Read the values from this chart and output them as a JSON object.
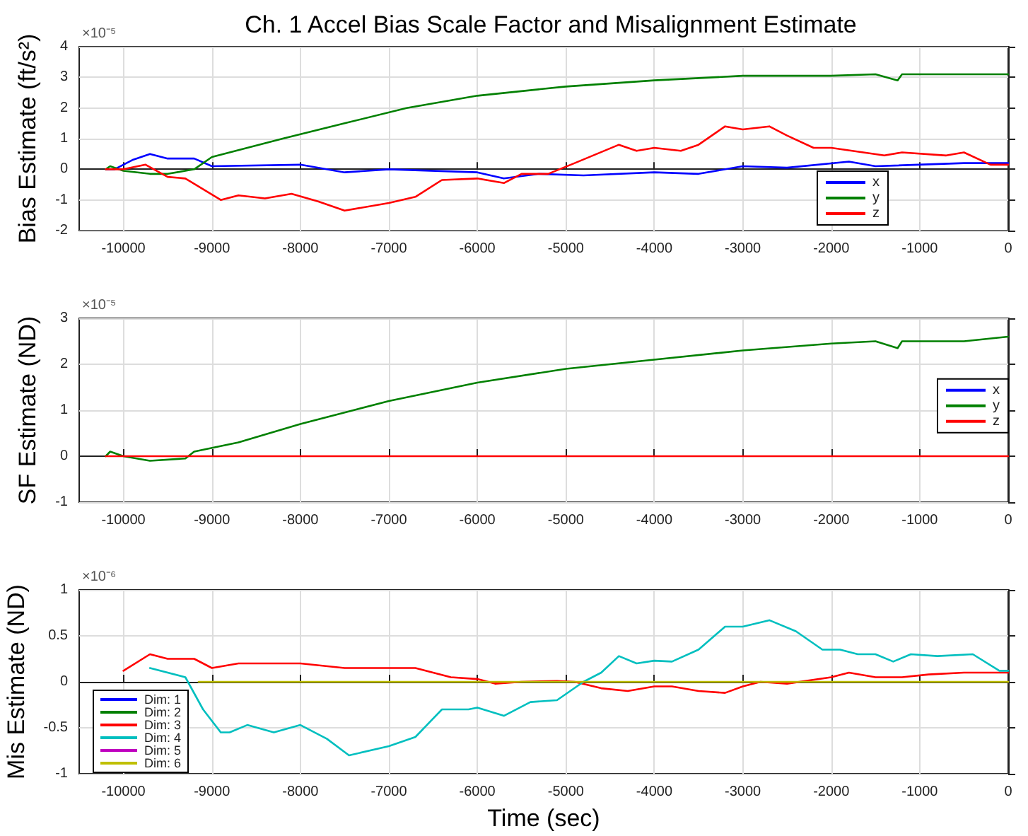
{
  "chart_data": [
    {
      "type": "line",
      "title": "Ch. 1 Accel Bias Scale Factor and Misalignment Estimate",
      "ylabel": "Bias Estimate (ft/s²)",
      "annotations": [
        "×10⁻⁵"
      ],
      "xlim": [
        -10500,
        0
      ],
      "xticks": [
        -10000,
        -9000,
        -8000,
        -7000,
        -6000,
        -5000,
        -4000,
        -3000,
        -2000,
        -1000,
        0
      ],
      "ylim": [
        -2,
        4
      ],
      "yticks": [
        -2,
        -1,
        0,
        1,
        2,
        3,
        4
      ],
      "grid": true,
      "legend": "bottom right",
      "line_style": "solid",
      "marker": "none",
      "series": [
        {
          "name": "x",
          "color": "#0000ff",
          "x": [
            -10200,
            -10100,
            -9900,
            -9700,
            -9500,
            -9200,
            -9000,
            -8000,
            -7500,
            -7000,
            -6000,
            -5700,
            -5300,
            -4800,
            -4000,
            -3500,
            -3000,
            -2500,
            -1800,
            -1500,
            -500,
            0
          ],
          "values": [
            0,
            0,
            0.3,
            0.5,
            0.35,
            0.35,
            0.1,
            0.15,
            -0.1,
            0,
            -0.1,
            -0.3,
            -0.15,
            -0.2,
            -0.1,
            -0.15,
            0.1,
            0.05,
            0.25,
            0.1,
            0.2,
            0.2
          ]
        },
        {
          "name": "y",
          "color": "#008000",
          "x": [
            -10200,
            -10150,
            -10000,
            -9700,
            -9500,
            -9200,
            -9000,
            -8200,
            -7500,
            -6800,
            -6000,
            -5000,
            -4000,
            -3000,
            -2000,
            -1500,
            -1250,
            -1200,
            0
          ],
          "values": [
            0,
            0.1,
            -0.05,
            -0.15,
            -0.15,
            0,
            0.4,
            1.0,
            1.5,
            2.0,
            2.4,
            2.7,
            2.9,
            3.05,
            3.05,
            3.1,
            2.9,
            3.1,
            3.1
          ]
        },
        {
          "name": "z",
          "color": "#ff0000",
          "x": [
            -10200,
            -10000,
            -9750,
            -9500,
            -9300,
            -8900,
            -8700,
            -8400,
            -8100,
            -7800,
            -7500,
            -7000,
            -6700,
            -6400,
            -6000,
            -5700,
            -5500,
            -5200,
            -4900,
            -4400,
            -4200,
            -4000,
            -3700,
            -3500,
            -3200,
            -3000,
            -2700,
            -2500,
            -2200,
            -2000,
            -1400,
            -1200,
            -700,
            -500,
            -200,
            0
          ],
          "values": [
            0,
            0,
            0.15,
            -0.25,
            -0.3,
            -1.0,
            -0.85,
            -0.95,
            -0.8,
            -1.05,
            -1.35,
            -1.1,
            -0.9,
            -0.35,
            -0.3,
            -0.45,
            -0.15,
            -0.15,
            0.2,
            0.8,
            0.6,
            0.7,
            0.6,
            0.8,
            1.4,
            1.3,
            1.4,
            1.1,
            0.7,
            0.7,
            0.45,
            0.55,
            0.45,
            0.55,
            0.15,
            0.15
          ]
        }
      ]
    },
    {
      "type": "line",
      "ylabel": "SF Estimate (ND)",
      "annotations": [
        "×10⁻⁵"
      ],
      "xlim": [
        -10500,
        0
      ],
      "xticks": [
        -10000,
        -9000,
        -8000,
        -7000,
        -6000,
        -5000,
        -4000,
        -3000,
        -2000,
        -1000,
        0
      ],
      "ylim": [
        -1,
        3
      ],
      "yticks": [
        -1,
        0,
        1,
        2,
        3
      ],
      "grid": true,
      "legend": "right",
      "line_style": "solid",
      "marker": "none",
      "series": [
        {
          "name": "x",
          "color": "#0000ff"
        },
        {
          "name": "y",
          "color": "#008000",
          "x": [
            -10200,
            -10150,
            -10000,
            -9700,
            -9300,
            -9200,
            -8700,
            -8000,
            -7400,
            -7000,
            -6000,
            -5000,
            -4000,
            -3000,
            -2000,
            -1500,
            -1250,
            -1200,
            -500,
            0
          ],
          "values": [
            0,
            0.1,
            0,
            -0.1,
            -0.05,
            0.1,
            0.3,
            0.7,
            1.0,
            1.2,
            1.6,
            1.9,
            2.1,
            2.3,
            2.45,
            2.5,
            2.35,
            2.5,
            2.5,
            2.6
          ]
        },
        {
          "name": "z",
          "color": "#ff0000",
          "x": [
            -10200,
            0
          ],
          "values": [
            0,
            0
          ]
        }
      ]
    },
    {
      "type": "line",
      "xlabel": "Time (sec)",
      "ylabel": "Mis Estimate (ND)",
      "annotations": [
        "×10⁻⁶"
      ],
      "xlim": [
        -10500,
        0
      ],
      "xticks": [
        -10000,
        -9000,
        -8000,
        -7000,
        -6000,
        -5000,
        -4000,
        -3000,
        -2000,
        -1000,
        0
      ],
      "ylim": [
        -1,
        1
      ],
      "yticks": [
        -1,
        -0.5,
        0,
        0.5,
        1
      ],
      "grid": true,
      "legend": "bottom left",
      "line_style": "solid",
      "marker": "none",
      "series": [
        {
          "name": "Dim: 1",
          "color": "#0000ff"
        },
        {
          "name": "Dim: 2",
          "color": "#008000"
        },
        {
          "name": "Dim: 3",
          "color": "#ff0000",
          "x": [
            -10000,
            -9700,
            -9500,
            -9200,
            -9000,
            -8700,
            -8400,
            -8000,
            -7500,
            -7000,
            -6700,
            -6300,
            -6000,
            -5800,
            -5500,
            -5100,
            -4900,
            -4600,
            -4300,
            -4000,
            -3800,
            -3500,
            -3200,
            -3000,
            -2800,
            -2500,
            -2000,
            -1800,
            -1500,
            -1200,
            -900,
            -500,
            0
          ],
          "values": [
            0.12,
            0.3,
            0.25,
            0.25,
            0.15,
            0.2,
            0.2,
            0.2,
            0.15,
            0.15,
            0.15,
            0.05,
            0.03,
            -0.02,
            0,
            0.01,
            0,
            -0.07,
            -0.1,
            -0.05,
            -0.05,
            -0.1,
            -0.12,
            -0.05,
            0,
            -0.02,
            0.05,
            0.1,
            0.05,
            0.05,
            0.08,
            0.1,
            0.1
          ]
        },
        {
          "name": "Dim: 4",
          "color": "#00bfbf",
          "x": [
            -9700,
            -9300,
            -9100,
            -8900,
            -8800,
            -8600,
            -8300,
            -8000,
            -7700,
            -7450,
            -7000,
            -6700,
            -6400,
            -6100,
            -6000,
            -5700,
            -5400,
            -5100,
            -4800,
            -4600,
            -4400,
            -4200,
            -4000,
            -3800,
            -3500,
            -3200,
            -3000,
            -2700,
            -2400,
            -2100,
            -1900,
            -1700,
            -1500,
            -1300,
            -1100,
            -800,
            -400,
            -100,
            0
          ],
          "values": [
            0.15,
            0.05,
            -0.3,
            -0.55,
            -0.55,
            -0.47,
            -0.55,
            -0.47,
            -0.62,
            -0.8,
            -0.7,
            -0.6,
            -0.3,
            -0.3,
            -0.28,
            -0.37,
            -0.22,
            -0.2,
            0,
            0.1,
            0.28,
            0.2,
            0.23,
            0.22,
            0.35,
            0.6,
            0.6,
            0.67,
            0.55,
            0.35,
            0.35,
            0.3,
            0.3,
            0.22,
            0.3,
            0.28,
            0.3,
            0.12,
            0.12
          ]
        },
        {
          "name": "Dim: 5",
          "color": "#bf00bf"
        },
        {
          "name": "Dim: 6",
          "color": "#bfbf00",
          "x": [
            -9150,
            0
          ],
          "values": [
            0,
            0
          ]
        }
      ]
    }
  ]
}
